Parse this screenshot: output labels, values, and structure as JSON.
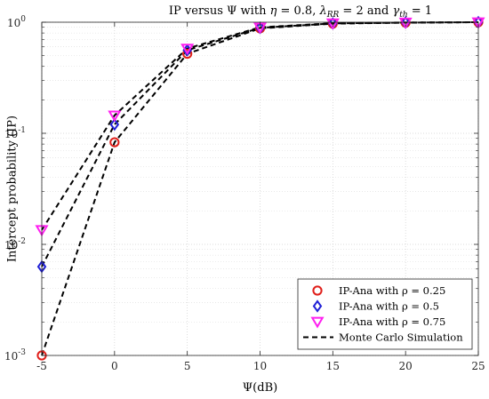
{
  "chart_data": {
    "type": "line",
    "title": "IP versus Ψ with η = 0.8, λ_RR = 2 and γ_th = 1",
    "xlabel": "Ψ(dB)",
    "ylabel": "Intercept probability (IP)",
    "x": [
      -5,
      0,
      5,
      10,
      15,
      20,
      25
    ],
    "xlim": [
      -5,
      25
    ],
    "ylim": [
      0.001,
      1
    ],
    "yscale": "log",
    "x_ticks": [
      "-5",
      "0",
      "5",
      "10",
      "15",
      "20",
      "25"
    ],
    "y_ticks": [
      {
        "base": "10",
        "exp": "-3"
      },
      {
        "base": "10",
        "exp": "-2"
      },
      {
        "base": "10",
        "exp": "-1"
      },
      {
        "base": "10",
        "exp": "0"
      }
    ],
    "grid": true,
    "legend_position": "bottom-right",
    "series": [
      {
        "name": "IP-Ana with ρ = 0.25",
        "marker": "circle",
        "color": "#e0201b",
        "values": [
          0.001,
          0.083,
          0.52,
          0.88,
          0.97,
          0.99,
          1.0
        ]
      },
      {
        "name": "IP-Ana with ρ = 0.5",
        "marker": "diamond",
        "color": "#1f1fd6",
        "values": [
          0.0063,
          0.12,
          0.56,
          0.89,
          0.975,
          0.993,
          1.0
        ]
      },
      {
        "name": "IP-Ana with ρ = 0.75",
        "marker": "triangle-down",
        "color": "#ff1ff0",
        "values": [
          0.0135,
          0.145,
          0.58,
          0.9,
          0.98,
          0.995,
          1.0
        ]
      },
      {
        "name": "Monte Carlo Simulation",
        "marker": "none",
        "color": "#000000",
        "dash": true,
        "values": null
      }
    ]
  }
}
